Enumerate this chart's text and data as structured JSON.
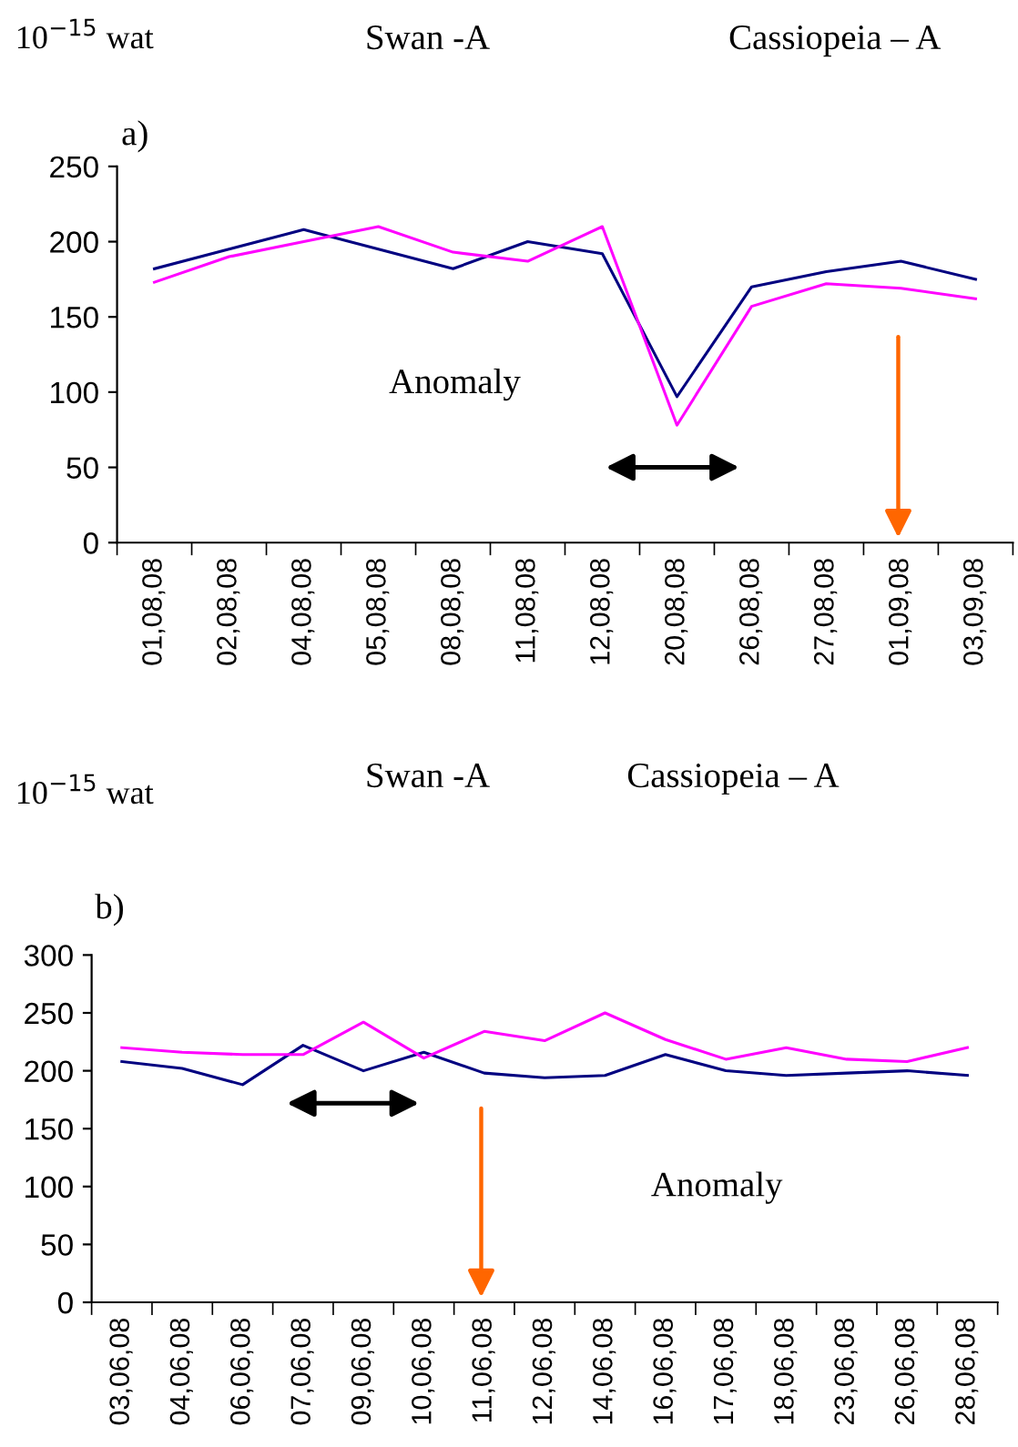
{
  "chart_data": [
    {
      "type": "line",
      "ylabel": "10$^{−15}$ wat",
      "annotations": [
        "Swan -A",
        "Cassiopeia – A",
        "a)",
        "Anomaly"
      ],
      "categories": [
        "01,08,08",
        "02,08,08",
        "04,08,08",
        "05,08,08",
        "08,08,08",
        "11,08,08",
        "12,08,08",
        "20,08,08",
        "26,08,08",
        "27,08,08",
        "01,09,08",
        "03,09,08"
      ],
      "series": [
        {
          "color": "#000080",
          "values": [
            182,
            195,
            208,
            195,
            182,
            200,
            192,
            97,
            170,
            180,
            187,
            175
          ]
        },
        {
          "color": "#ff00ff",
          "values": [
            173,
            190,
            200,
            210,
            193,
            187,
            210,
            78,
            157,
            172,
            169,
            162
          ]
        }
      ],
      "ylim": [
        0,
        250
      ],
      "yticks": [
        0,
        50,
        100,
        150,
        200,
        250
      ]
    },
    {
      "type": "line",
      "ylabel": "10$^{−15}$ wat",
      "annotations": [
        "Swan -A",
        "Cassiopeia – A",
        "b)",
        "Anomaly"
      ],
      "categories": [
        "03,06,08",
        "04,06,08",
        "06,06,08",
        "07,06,08",
        "09,06,08",
        "10,06,08",
        "11,06,08",
        "12,06,08",
        "14,06,08",
        "16,06,08",
        "17,06,08",
        "18,06,08",
        "23,06,08",
        "26,06,08",
        "28,06,08"
      ],
      "series": [
        {
          "color": "#000080",
          "values": [
            208,
            202,
            188,
            222,
            200,
            216,
            198,
            194,
            196,
            214,
            200,
            196,
            198,
            200,
            196
          ]
        },
        {
          "color": "#ff00ff",
          "values": [
            220,
            216,
            214,
            214,
            242,
            211,
            234,
            226,
            250,
            227,
            210,
            220,
            210,
            208,
            220
          ]
        }
      ],
      "ylim": [
        0,
        300
      ],
      "yticks": [
        0,
        50,
        100,
        150,
        200,
        250,
        300
      ]
    }
  ]
}
